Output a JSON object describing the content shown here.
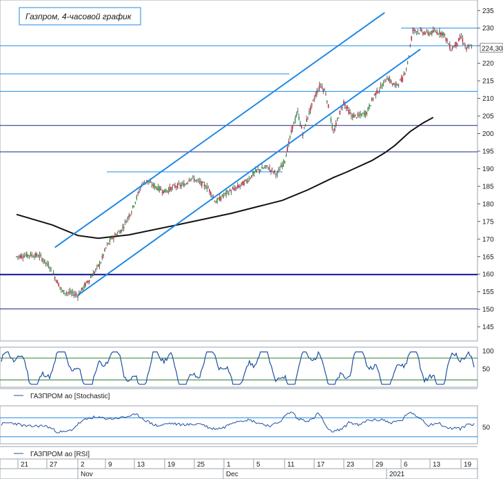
{
  "chart_data": {
    "type": "candlestick",
    "title": "Газпром, 4-часовой график",
    "symbol": "ГАЗПРОМ ао",
    "last_price": "224,30",
    "price_axis": {
      "ylim": [
        141,
        238
      ],
      "ticks": [
        145,
        150,
        155,
        160,
        165,
        170,
        175,
        180,
        185,
        190,
        195,
        200,
        205,
        210,
        215,
        220,
        225,
        230,
        235
      ]
    },
    "date_axis": {
      "day_ticks": [
        "21",
        "27",
        "2",
        "9",
        "13",
        "19",
        "25",
        "1",
        "5",
        "11",
        "17",
        "23",
        "29",
        "6",
        "13",
        "19"
      ],
      "month_labels": [
        "Nov",
        "Dec",
        "2021"
      ]
    },
    "horizontal_levels": [
      {
        "value": 230.0,
        "color": "#1e88e5"
      },
      {
        "value": 225.0,
        "color": "#1e88e5"
      },
      {
        "value": 217.0,
        "color": "#1e88e5"
      },
      {
        "value": 212.0,
        "color": "#1e88e5"
      },
      {
        "value": 202.3,
        "color": "#1a237e"
      },
      {
        "value": 194.8,
        "color": "#1a237e"
      },
      {
        "value": 189.1,
        "color": "#1e88e5"
      },
      {
        "value": 159.9,
        "color": "#0d0d8f"
      },
      {
        "value": 150.1,
        "color": "#1a237e"
      }
    ],
    "trend_channel": {
      "color": "#1e88e5",
      "lower_line": [
        [
          0,
          154.0
        ],
        [
          134,
          224.0
        ]
      ],
      "upper_line": [
        [
          -9,
          167.6
        ],
        [
          120,
          234.4
        ]
      ]
    },
    "moving_average": {
      "color": "#111111",
      "values": [
        [
          -24,
          177
        ],
        [
          -10,
          174
        ],
        [
          0,
          171
        ],
        [
          8,
          170.2
        ],
        [
          20,
          171.2
        ],
        [
          40,
          174.2
        ],
        [
          60,
          177.3
        ],
        [
          80,
          181.0
        ],
        [
          90,
          184.0
        ],
        [
          100,
          187.5
        ],
        [
          105,
          189.0
        ],
        [
          115,
          192.3
        ],
        [
          120,
          194.5
        ],
        [
          124,
          196.6
        ],
        [
          130,
          200.6
        ],
        [
          135,
          203.0
        ],
        [
          139,
          204.6
        ]
      ]
    },
    "price_path": [
      [
        -24,
        165.0
      ],
      [
        -19,
        165.5
      ],
      [
        -15,
        165.2
      ],
      [
        -11,
        162.0
      ],
      [
        -6,
        155.0
      ],
      [
        -2,
        154.5
      ],
      [
        0,
        154.0
      ],
      [
        3,
        157.0
      ],
      [
        6,
        160.0
      ],
      [
        9,
        163.5
      ],
      [
        11,
        167.5
      ],
      [
        13,
        170.0
      ],
      [
        17,
        172.5
      ],
      [
        21,
        178.0
      ],
      [
        25,
        185.5
      ],
      [
        27,
        186.5
      ],
      [
        30,
        185.0
      ],
      [
        34,
        183.5
      ],
      [
        38,
        185.0
      ],
      [
        42,
        185.5
      ],
      [
        44,
        187.5
      ],
      [
        46,
        186.8
      ],
      [
        48,
        186.0
      ],
      [
        51,
        184.5
      ],
      [
        54,
        180.5
      ],
      [
        58,
        183.0
      ],
      [
        62,
        184.5
      ],
      [
        66,
        186.5
      ],
      [
        70,
        189.5
      ],
      [
        74,
        190.5
      ],
      [
        78,
        188.5
      ],
      [
        81,
        192.5
      ],
      [
        84,
        202.0
      ],
      [
        86,
        206.0
      ],
      [
        88,
        200.0
      ],
      [
        90,
        205.0
      ],
      [
        93,
        211.0
      ],
      [
        95,
        214.0
      ],
      [
        97,
        211.5
      ],
      [
        100,
        200.0
      ],
      [
        102,
        205.0
      ],
      [
        104,
        209.0
      ],
      [
        107,
        205.0
      ],
      [
        110,
        205.0
      ],
      [
        113,
        206.0
      ],
      [
        116,
        211.0
      ],
      [
        119,
        213.5
      ],
      [
        121,
        216.0
      ],
      [
        124,
        213.5
      ],
      [
        127,
        215.5
      ],
      [
        129,
        220.0
      ],
      [
        131,
        229.5
      ],
      [
        134,
        229.0
      ],
      [
        137,
        228.5
      ],
      [
        140,
        229.0
      ],
      [
        143,
        228.5
      ],
      [
        146,
        224.0
      ],
      [
        148,
        225.5
      ],
      [
        150,
        227.5
      ],
      [
        152,
        224.0
      ],
      [
        154,
        225.0
      ]
    ],
    "indicators": [
      {
        "name": "ГАЗПРОМ ао [Stochastic]",
        "ylim": [
          0,
          110
        ],
        "ticks": [
          50,
          100
        ],
        "levels": [
          80,
          20
        ],
        "level_color": "#2e7d32",
        "line_color": "#1e4fa0"
      },
      {
        "name": "ГАЗПРОМ ао [RSI]",
        "ylim": [
          15,
          95
        ],
        "ticks": [
          50
        ],
        "levels": [
          70,
          30
        ],
        "level_color": "#1e88e5",
        "line_color": "#1e4fa0"
      }
    ]
  }
}
